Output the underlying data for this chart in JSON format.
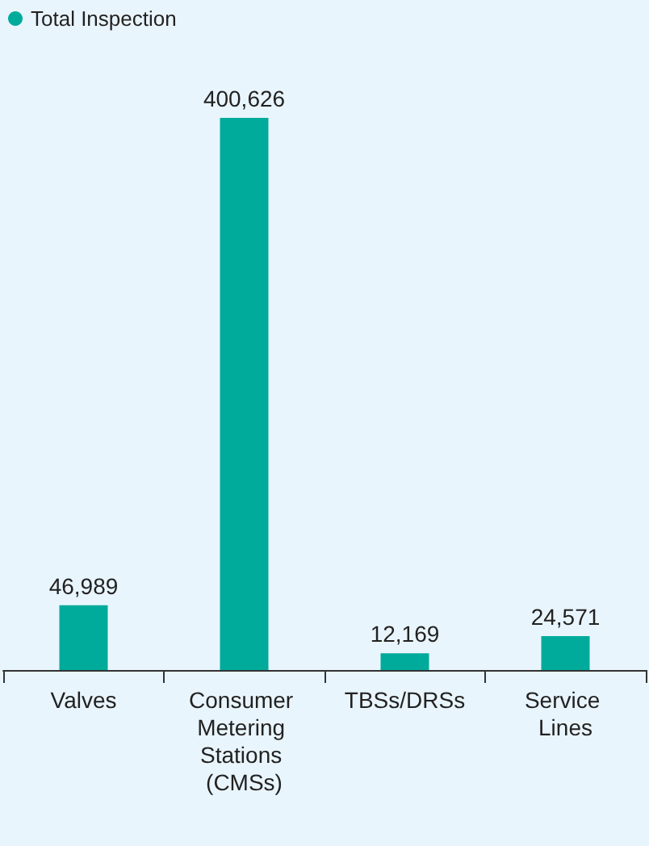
{
  "chart_data": {
    "type": "bar",
    "categories": [
      "Valves",
      "Consumer Metering Stations (CMSs)",
      "TBSs/DRSs",
      "Service Lines"
    ],
    "series": [
      {
        "name": "Total Inspection",
        "color": "#00ab9b",
        "values": [
          46989,
          400626,
          12169,
          24571
        ],
        "value_labels": [
          "46,989",
          "400,626",
          "12,169",
          "24,571"
        ]
      }
    ],
    "legend": "top left",
    "grid": false
  }
}
